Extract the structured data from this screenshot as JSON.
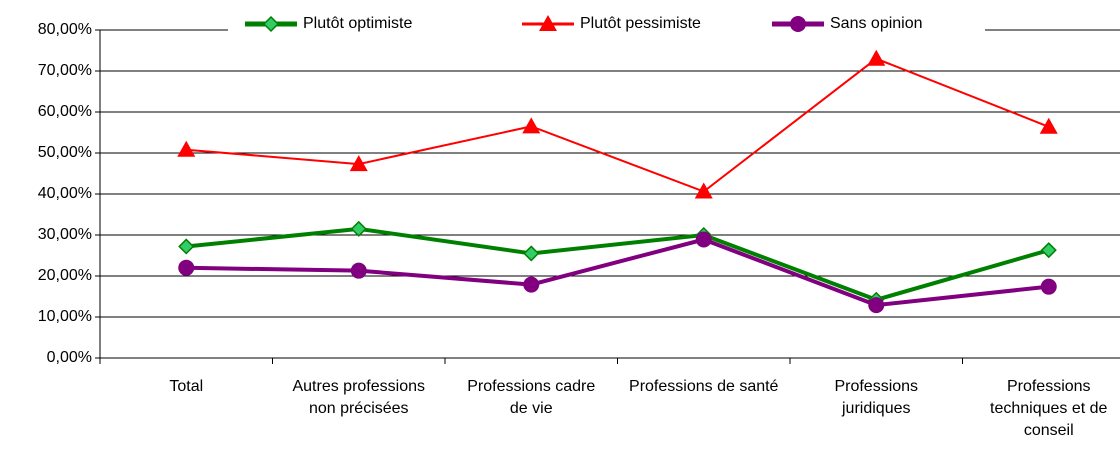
{
  "chart_data": {
    "type": "line",
    "categories": [
      "Total",
      "Autres professions non précisées",
      "Professions cadre de vie",
      "Professions de santé",
      "Professions juridiques",
      "Professions techniques et de conseil"
    ],
    "series": [
      {
        "name": "Plutôt optimiste",
        "color": "#008000",
        "values": [
          27.2,
          31.5,
          25.5,
          30,
          14.2,
          26.3
        ]
      },
      {
        "name": "Plutôt pessimiste",
        "color": "#ff0000",
        "values": [
          50.8,
          47.3,
          56.5,
          40.6,
          73,
          56.4
        ]
      },
      {
        "name": "Sans opinion",
        "color": "#800080",
        "values": [
          22,
          21.3,
          17.9,
          28.9,
          12.9,
          17.4
        ]
      }
    ],
    "ylim": [
      0,
      80
    ],
    "yticks": [
      {
        "value": 0,
        "label": "0,00%"
      },
      {
        "value": 10,
        "label": "10,00%"
      },
      {
        "value": 20,
        "label": "20,00%"
      },
      {
        "value": 30,
        "label": "30,00%"
      },
      {
        "value": 40,
        "label": "40,00%"
      },
      {
        "value": 50,
        "label": "50,00%"
      },
      {
        "value": 60,
        "label": "60,00%"
      },
      {
        "value": 70,
        "label": "70,00%"
      },
      {
        "value": 80,
        "label": "80,00%"
      }
    ],
    "grid": true
  }
}
